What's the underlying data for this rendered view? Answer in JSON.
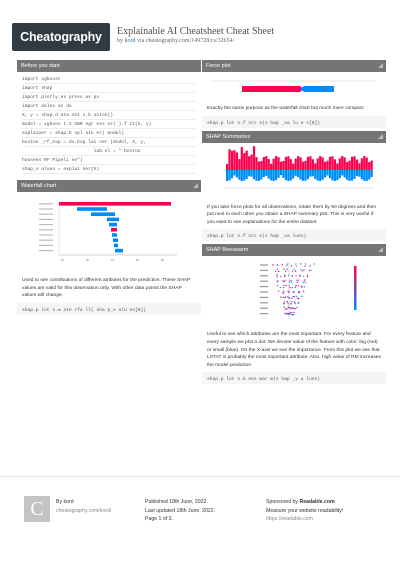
{
  "header": {
    "logo": "Cheatography",
    "title": "Explainable AI Cheatsheet Cheat Sheet",
    "by_prefix": "by ",
    "author": "kord",
    "via": " via cheatography.com/149728/cs/32654/"
  },
  "sections": {
    "before": {
      "title": "Before you start",
      "code": [
        "import xgboost",
        "import shap",
        "import plotly.ex press as px",
        "import dalex as dx",
        "X, y = shap.d ata set s.b oston()",
        "model = xgboos t.X GBR egr ess or( ).f it(X, y)",
        "explainer = shap.E xpl ain er( model)",
        "boston _rf_exp = dx.Exp lai ner (model, X, y,",
        "                          lab el = \" boston",
        "housees RF Pipeli ne\")",
        "shap_v alues = explai ner(X)"
      ]
    },
    "waterfall": {
      "title": "Waterfall chart",
      "text": "Used to see contributions of different atributes for the prediction. These SHAP values are valid for this observation only. With other data points the SHAP values will change.",
      "code": "shap.p lot s.w ate rfa ll( sha p_v alu es[0])"
    },
    "force": {
      "title": "Force plot",
      "text": "Exactly the same purpose as the waterfall chart but much more compact",
      "code": "shap.p lot s.f orc e(s hap _va lu e s[0])"
    },
    "summaries": {
      "title": "SHAP Summaries",
      "text": "If you take force plots for all observations, rotate them by 90 degrees and then put next to each other you obtain a SHAP summary plot. This is very useful if you want to see explanations for the entire dataset.",
      "code": "shap.p lot s.f orc e(s hap _va lues)"
    },
    "beeswarm": {
      "title": "SHAP Beeswarm",
      "text": "Useful to see which attributes are the most important. For every feature and every sample we plot a dot. We denote value of the feature with color: big (red) or small (blue). On the X-axis we see the importance. From this plot we see that LSTAT is probably the most important attribute. Also, high value of RM increases the model prediction",
      "code": "shap.p lot s.b ees war m(s hap _v a lues)"
    }
  },
  "footer": {
    "avatar_letter": "C",
    "by_label": "By ",
    "author": "kord",
    "author_link": "cheatography.com/kord/",
    "published": "Published 18th June, 2022.",
    "updated": "Last updated 18th June, 2022.",
    "page": "Page 1 of 3.",
    "sponsor_prefix": "Sponsored by ",
    "sponsor": "Readable.com",
    "sponsor_line": "Measure your website readability!",
    "sponsor_link": "https://readable.com"
  },
  "colors": {
    "header_bar": "#757575",
    "positive": "#ff0051",
    "negative": "#008bfb",
    "logo_bg": "#2f3a43"
  }
}
